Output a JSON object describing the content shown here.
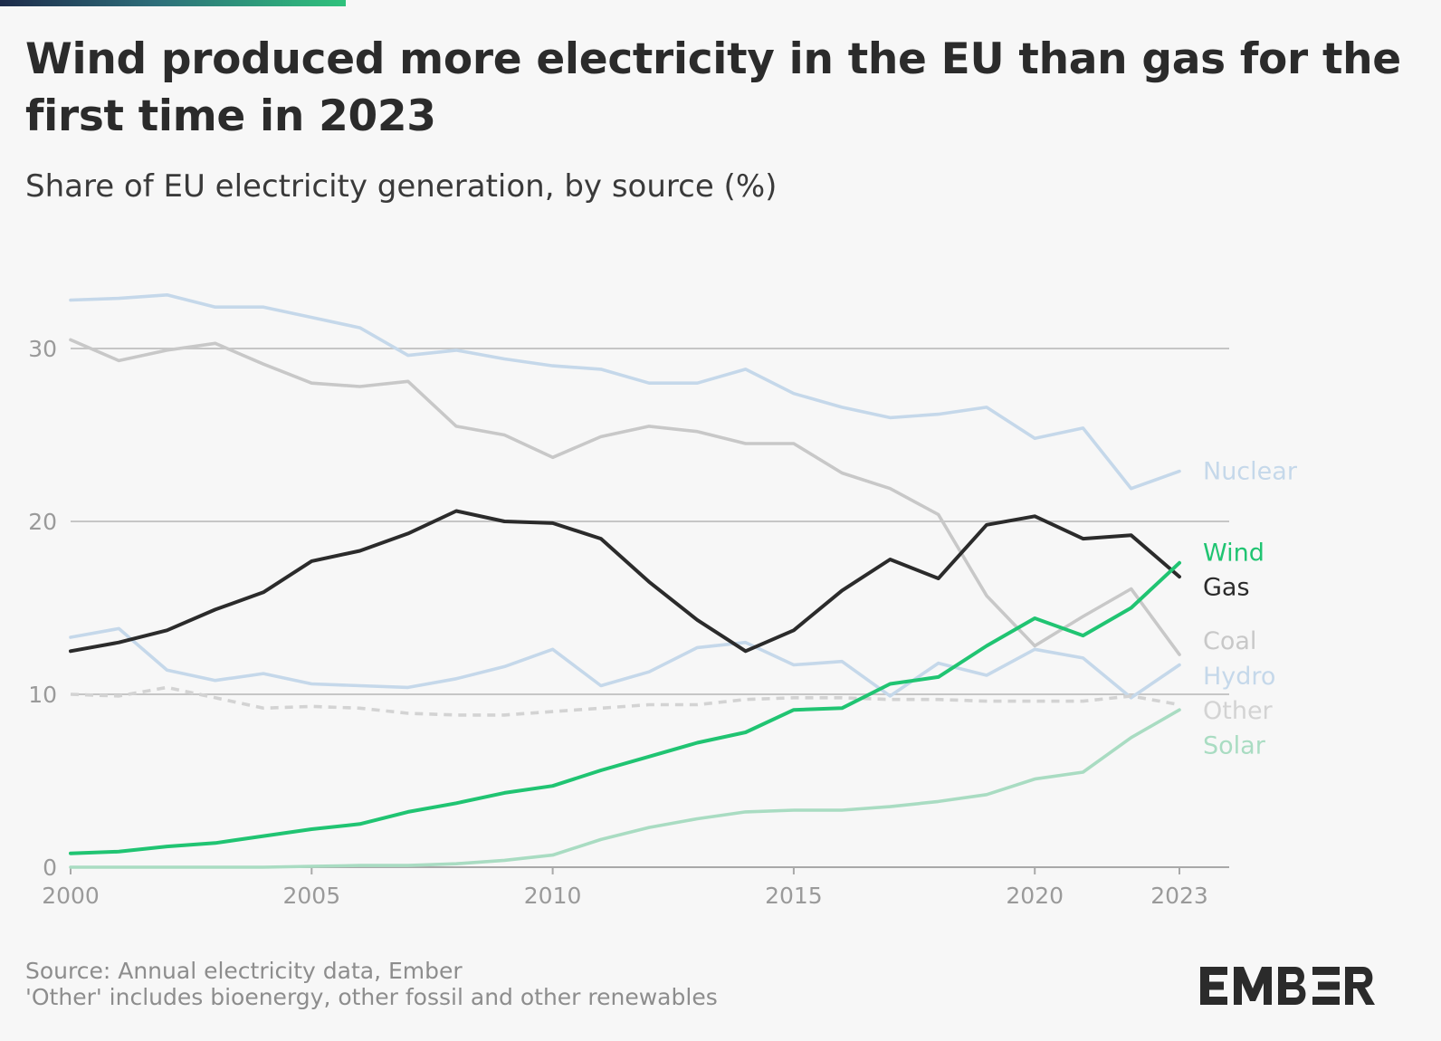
{
  "header": {
    "title": "Wind produced more electricity in the EU than gas for the first time in 2023",
    "subtitle": "Share of EU electricity generation, by source (%)"
  },
  "footer": {
    "source": "Source: Annual electricity data, Ember",
    "note": "'Other' includes bioenergy, other fossil and other renewables"
  },
  "brand": {
    "logo": "EMBER"
  },
  "chart_data": {
    "type": "line",
    "x": [
      2000,
      2001,
      2002,
      2003,
      2004,
      2005,
      2006,
      2007,
      2008,
      2009,
      2010,
      2011,
      2012,
      2013,
      2014,
      2015,
      2016,
      2017,
      2018,
      2019,
      2020,
      2021,
      2022,
      2023
    ],
    "x_ticks": [
      2000,
      2005,
      2010,
      2015,
      2020,
      2023
    ],
    "y_ticks": [
      0,
      10,
      20,
      30
    ],
    "xlim": [
      2000,
      2023
    ],
    "ylim": [
      0,
      35
    ],
    "grid": "horizontal",
    "legend": "right end labels",
    "series": [
      {
        "name": "Nuclear",
        "color": "#c5d8ea",
        "dashed": false,
        "values": [
          32.8,
          32.9,
          33.1,
          32.4,
          32.4,
          31.8,
          31.2,
          29.6,
          29.9,
          29.4,
          29.0,
          28.8,
          28.0,
          28.0,
          28.8,
          27.4,
          26.6,
          26.0,
          26.2,
          26.6,
          24.8,
          25.4,
          21.9,
          22.9
        ]
      },
      {
        "name": "Coal",
        "color": "#c8c8c8",
        "dashed": false,
        "values": [
          30.5,
          29.3,
          29.9,
          30.3,
          29.1,
          28.0,
          27.8,
          28.1,
          25.5,
          25.0,
          23.7,
          24.9,
          25.5,
          25.2,
          24.5,
          24.5,
          22.8,
          21.9,
          20.4,
          15.7,
          12.8,
          14.5,
          16.1,
          12.3
        ]
      },
      {
        "name": "Hydro",
        "color": "#c5d8ea",
        "dashed": false,
        "values": [
          13.3,
          13.8,
          11.4,
          10.8,
          11.2,
          10.6,
          10.5,
          10.4,
          10.9,
          11.6,
          12.6,
          10.5,
          11.3,
          12.7,
          13.0,
          11.7,
          11.9,
          9.9,
          11.8,
          11.1,
          12.6,
          12.1,
          9.8,
          11.7
        ]
      },
      {
        "name": "Other",
        "color": "#d3d3d3",
        "dashed": true,
        "values": [
          10.0,
          9.9,
          10.4,
          9.8,
          9.2,
          9.3,
          9.2,
          8.9,
          8.8,
          8.8,
          9.0,
          9.2,
          9.4,
          9.4,
          9.7,
          9.8,
          9.8,
          9.7,
          9.7,
          9.6,
          9.6,
          9.6,
          9.9,
          9.4
        ]
      },
      {
        "name": "Solar",
        "color": "#a9dcc2",
        "dashed": false,
        "values": [
          0.0,
          0.0,
          0.0,
          0.0,
          0.0,
          0.05,
          0.1,
          0.1,
          0.2,
          0.4,
          0.7,
          1.6,
          2.3,
          2.8,
          3.2,
          3.3,
          3.3,
          3.5,
          3.8,
          4.2,
          5.1,
          5.5,
          7.5,
          9.1
        ]
      },
      {
        "name": "Gas",
        "color": "#2b2b2b",
        "dashed": false,
        "values": [
          12.5,
          13.0,
          13.7,
          14.9,
          15.9,
          17.7,
          18.3,
          19.3,
          20.6,
          20.0,
          19.9,
          19.0,
          16.5,
          14.3,
          12.5,
          13.7,
          16.0,
          17.8,
          16.7,
          19.8,
          20.3,
          19.0,
          19.2,
          16.8
        ]
      },
      {
        "name": "Wind",
        "color": "#20c472",
        "dashed": false,
        "values": [
          0.8,
          0.9,
          1.2,
          1.4,
          1.8,
          2.2,
          2.5,
          3.2,
          3.7,
          4.3,
          4.7,
          5.6,
          6.4,
          7.2,
          7.8,
          9.1,
          9.2,
          10.6,
          11.0,
          12.8,
          14.4,
          13.4,
          15.0,
          17.6
        ]
      }
    ],
    "labels": [
      {
        "text": "Nuclear",
        "color": "#c5d8ea",
        "y": 22.9
      },
      {
        "text": "Wind",
        "color": "#20c472",
        "y": 18.2
      },
      {
        "text": "Gas",
        "color": "#2b2b2b",
        "y": 16.2
      },
      {
        "text": "Coal",
        "color": "#c8c8c8",
        "y": 13.1
      },
      {
        "text": "Hydro",
        "color": "#c5d8ea",
        "y": 11.05
      },
      {
        "text": "Other",
        "color": "#d3d3d3",
        "y": 9.05
      },
      {
        "text": "Solar",
        "color": "#a9dcc2",
        "y": 7.05
      }
    ]
  }
}
